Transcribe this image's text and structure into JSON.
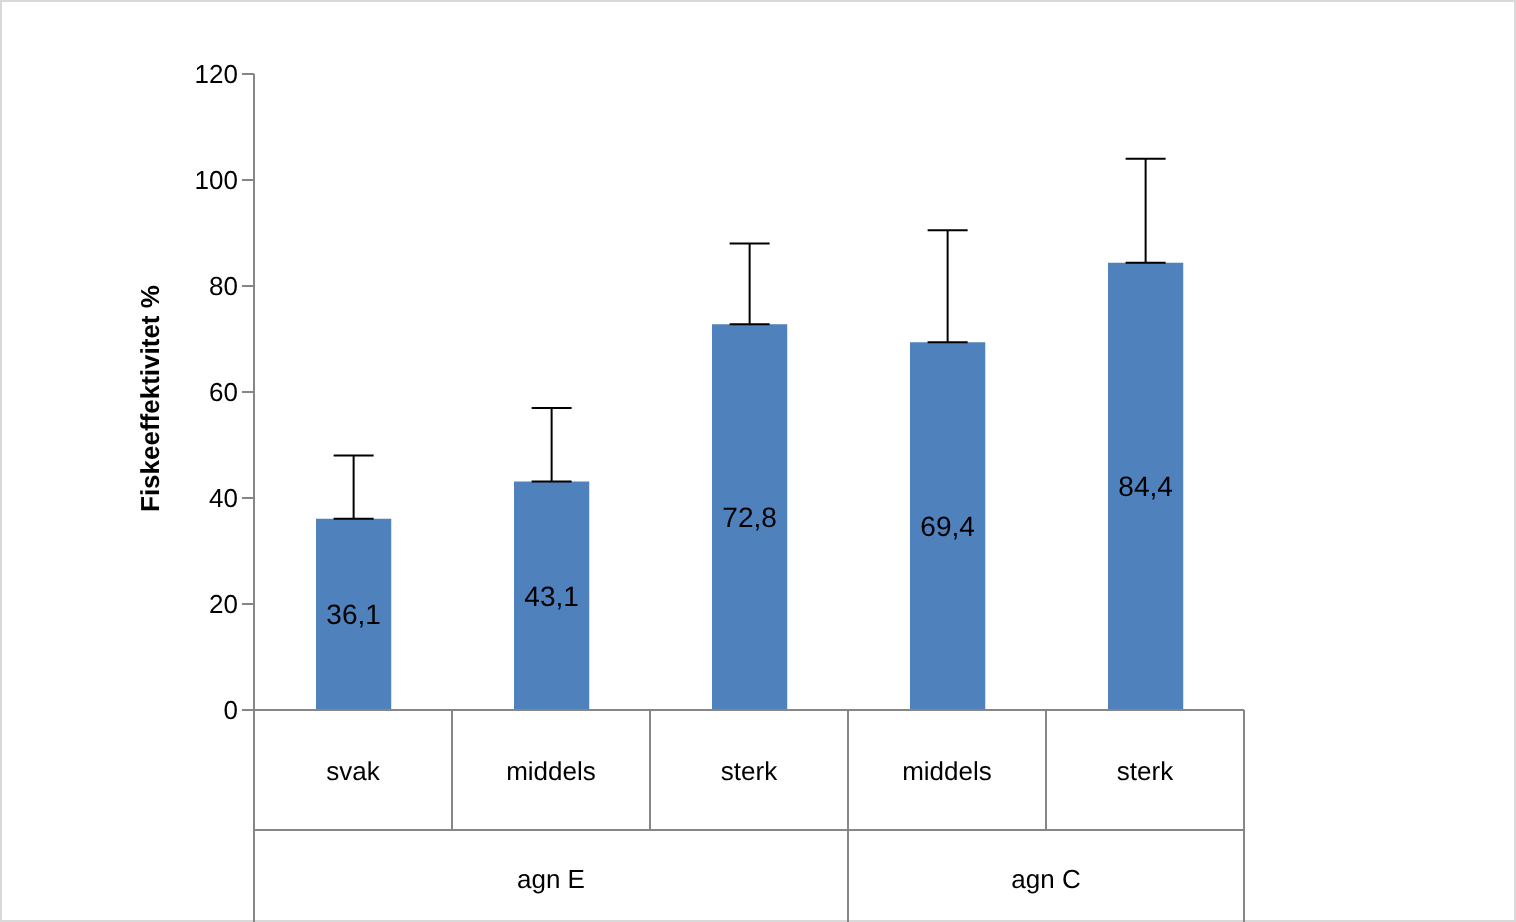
{
  "chart_data": {
    "type": "bar",
    "ylabel": "Fiskeeffektivitet %",
    "categories": [
      "svak",
      "middels",
      "sterk",
      "middels",
      "sterk"
    ],
    "values": [
      36.1,
      43.1,
      72.8,
      69.4,
      84.4
    ],
    "value_labels": [
      "36,1",
      "43,1",
      "72,8",
      "69,4",
      "84,4"
    ],
    "errors": [
      [
        36.1,
        48
      ],
      [
        43.1,
        57
      ],
      [
        72.8,
        88
      ],
      [
        69.4,
        90.5
      ],
      [
        84.4,
        104
      ]
    ],
    "color": "#4f81bd",
    "ylim": [
      0,
      120
    ],
    "yticks": [
      0,
      20,
      40,
      60,
      80,
      100,
      120
    ],
    "annotations": [
      "agn E",
      "agn C"
    ]
  }
}
